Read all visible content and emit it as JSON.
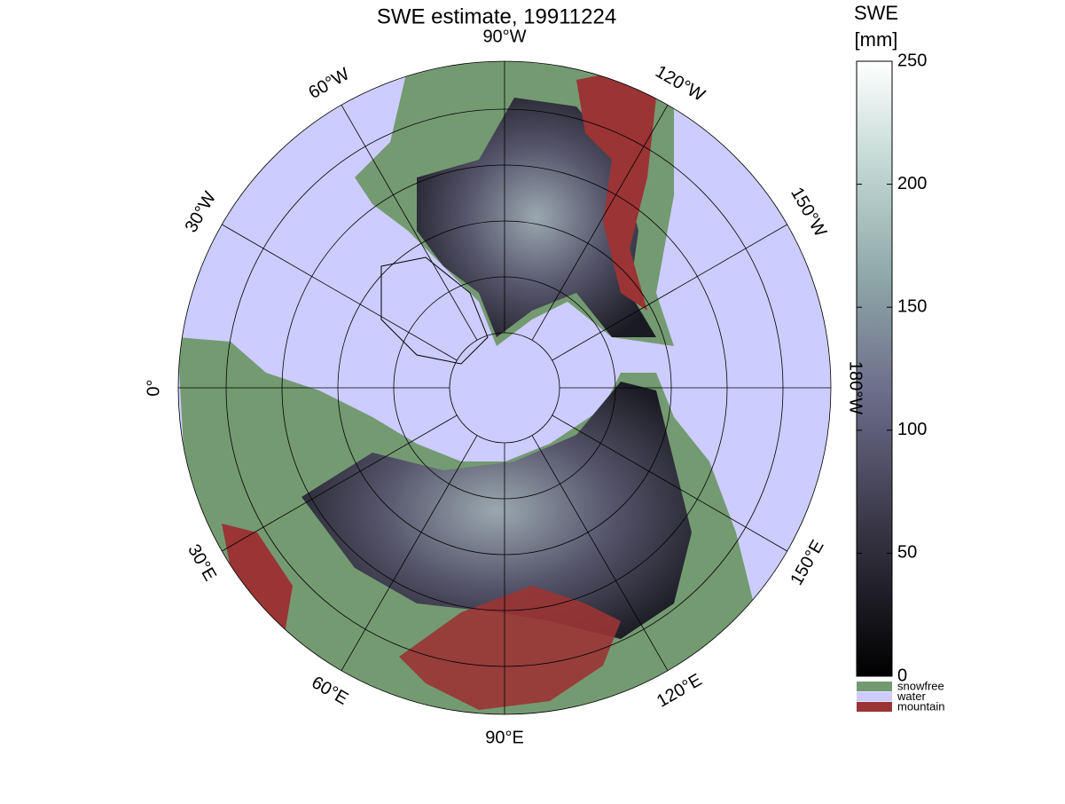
{
  "title": "SWE estimate, 19911224",
  "lon_ticks": [
    {
      "value": 0,
      "label": "0°"
    },
    {
      "value": 30,
      "label": "30°E"
    },
    {
      "value": 60,
      "label": "60°E"
    },
    {
      "value": 90,
      "label": "90°E"
    },
    {
      "value": 120,
      "label": "120°E"
    },
    {
      "value": 150,
      "label": "150°E"
    },
    {
      "value": 180,
      "label": "180°W"
    },
    {
      "value": -150,
      "label": "150°W"
    },
    {
      "value": -120,
      "label": "120°W"
    },
    {
      "value": -90,
      "label": "90°W"
    },
    {
      "value": -60,
      "label": "60°W"
    },
    {
      "value": -30,
      "label": "30°W"
    }
  ],
  "colorbar": {
    "label_line1": "SWE",
    "label_line2": "[mm]",
    "lim": [
      0,
      250
    ],
    "ticks": [
      0,
      50,
      100,
      150,
      200,
      250
    ]
  },
  "legend": [
    {
      "name": "snowfree",
      "color": "#749a72"
    },
    {
      "name": "water",
      "color": "#ccccff"
    },
    {
      "name": "mountain",
      "color": "#9b3434"
    }
  ]
}
